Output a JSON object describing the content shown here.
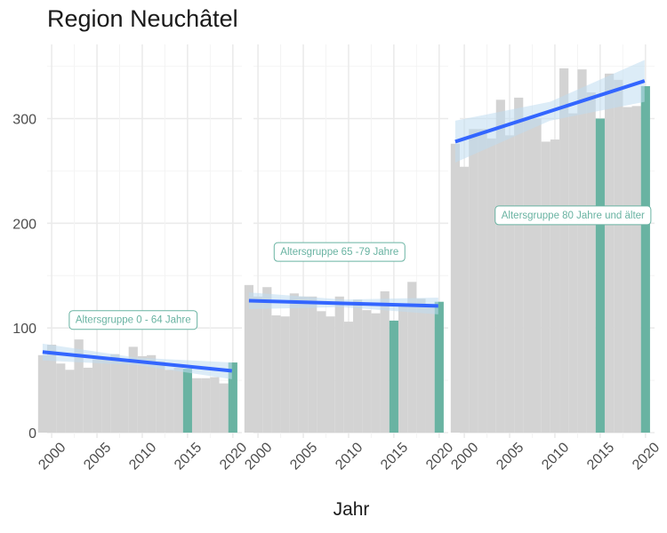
{
  "chart_data": {
    "type": "bar",
    "title": "Region Neuchâtel",
    "xlabel": "Jahr",
    "ylabel": "",
    "ylim": [
      0,
      365
    ],
    "yticks": [
      0,
      100,
      200,
      300
    ],
    "xlim": [
      1999.5,
      2021.0
    ],
    "xticks": [
      2000,
      2005,
      2010,
      2015,
      2020
    ],
    "grid": true,
    "colors": {
      "bar": "#d3d3d3",
      "highlight": "#69b3a2",
      "trend": "#3366ff",
      "ribbon": "#bfdcf0",
      "label": "#69b3a2"
    },
    "highlight_years": [
      2015,
      2020
    ],
    "panels": [
      {
        "label": "Altersgruppe 0 - 64 Jahre",
        "label_year": 2009,
        "label_value": 108,
        "x": [
          1999,
          2000,
          2001,
          2002,
          2003,
          2004,
          2005,
          2006,
          2007,
          2008,
          2009,
          2010,
          2011,
          2012,
          2013,
          2014,
          2015,
          2016,
          2017,
          2018,
          2019,
          2020
        ],
        "values": [
          74,
          84,
          66,
          60,
          89,
          62,
          70,
          70,
          75,
          70,
          82,
          73,
          74,
          68,
          60,
          62,
          61,
          52,
          52,
          53,
          47,
          67
        ],
        "trend": {
          "x0": 1999,
          "y0": 77,
          "x1": 2019.9,
          "y1": 59
        }
      },
      {
        "label": "Altersgruppe 65 -79 Jahre",
        "label_year": 2009,
        "label_value": 173,
        "x": [
          1999,
          2000,
          2001,
          2002,
          2003,
          2004,
          2005,
          2006,
          2007,
          2008,
          2009,
          2010,
          2011,
          2012,
          2013,
          2014,
          2015,
          2016,
          2017,
          2018,
          2019,
          2020
        ],
        "values": [
          141,
          130,
          139,
          112,
          111,
          133,
          130,
          130,
          116,
          111,
          130,
          106,
          127,
          117,
          114,
          135,
          107,
          121,
          144,
          128,
          122,
          125
        ],
        "trend": {
          "x0": 1999,
          "y0": 126,
          "x1": 2019.9,
          "y1": 121
        }
      },
      {
        "label": "Altersgruppe 80 Jahre und älter",
        "label_year": 2012,
        "label_value": 208,
        "x": [
          1999,
          2000,
          2001,
          2002,
          2003,
          2004,
          2005,
          2006,
          2007,
          2008,
          2009,
          2010,
          2011,
          2012,
          2013,
          2014,
          2015,
          2016,
          2017,
          2018,
          2019,
          2020
        ],
        "values": [
          276,
          254,
          290,
          290,
          281,
          318,
          284,
          320,
          299,
          300,
          278,
          280,
          348,
          305,
          347,
          325,
          300,
          343,
          337,
          311,
          312,
          331
        ],
        "trend": {
          "x0": 1999,
          "y0": 278,
          "x1": 2019.9,
          "y1": 336
        }
      }
    ]
  }
}
